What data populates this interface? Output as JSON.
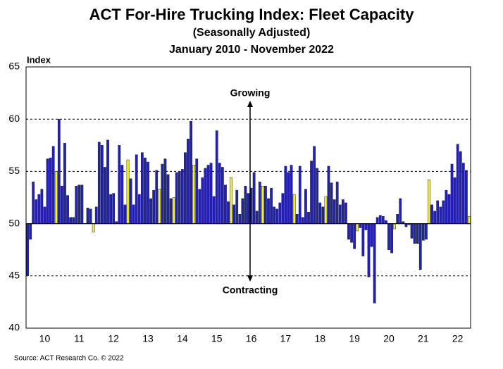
{
  "chart_data": {
    "type": "bar",
    "title": "ACT For-Hire Trucking Index: Fleet Capacity",
    "subtitle": "(Seasonally Adjusted)",
    "date_range": "January 2010 - November 2022",
    "y_label": "Index",
    "source": "Source: ACT Research Co. © 2022",
    "annotations": [
      "Growing",
      "Contracting"
    ],
    "categories": [
      null,
      null,
      null,
      null,
      null,
      null,
      "10",
      null,
      null,
      null,
      null,
      null,
      null,
      null,
      null,
      null,
      null,
      null,
      "11",
      null,
      null,
      null,
      null,
      null,
      null,
      null,
      null,
      null,
      null,
      null,
      "12",
      null,
      null,
      null,
      null,
      null,
      null,
      null,
      null,
      null,
      null,
      null,
      "13",
      null,
      null,
      null,
      null,
      null,
      null,
      null,
      null,
      null,
      null,
      null,
      "14",
      null,
      null,
      null,
      null,
      null,
      null,
      null,
      null,
      null,
      null,
      null,
      "15",
      null,
      null,
      null,
      null,
      null,
      null,
      null,
      null,
      null,
      null,
      null,
      "16",
      null,
      null,
      null,
      null,
      null,
      null,
      null,
      null,
      null,
      null,
      null,
      "17",
      null,
      null,
      null,
      null,
      null,
      null,
      null,
      null,
      null,
      null,
      null,
      "18",
      null,
      null,
      null,
      null,
      null,
      null,
      null,
      null,
      null,
      null,
      null,
      "19",
      null,
      null,
      null,
      null,
      null,
      null,
      null,
      null,
      null,
      null,
      null,
      "20",
      null,
      null,
      null,
      null,
      null,
      null,
      null,
      null,
      null,
      null,
      null,
      "21",
      null,
      null,
      null,
      null,
      null,
      null,
      null,
      null,
      null,
      null,
      null,
      "22",
      null,
      null,
      null,
      null
    ],
    "values": [
      45.0,
      48.5,
      54.0,
      52.3,
      52.8,
      53.3,
      51.6,
      56.2,
      56.3,
      57.4,
      55.0,
      60.0,
      53.6,
      57.7,
      52.7,
      50.6,
      50.6,
      53.6,
      53.7,
      53.7,
      50.0,
      51.5,
      51.4,
      49.2,
      51.6,
      57.8,
      57.5,
      55.4,
      58.0,
      52.8,
      52.9,
      50.2,
      57.5,
      55.6,
      51.8,
      56.1,
      54.3,
      51.8,
      56.6,
      52.8,
      56.8,
      56.3,
      55.9,
      52.4,
      53.2,
      55.1,
      53.3,
      55.7,
      56.2,
      54.7,
      52.4,
      52.5,
      54.9,
      55.0,
      55.2,
      56.8,
      58.1,
      59.8,
      55.6,
      56.2,
      53.3,
      54.4,
      55.3,
      55.6,
      55.8,
      52.6,
      58.9,
      55.8,
      55.4,
      53.7,
      52.1,
      54.4,
      51.8,
      53.2,
      50.9,
      52.4,
      53.6,
      52.9,
      53.4,
      54.9,
      51.2,
      54.0,
      53.6,
      53.6,
      52.4,
      53.4,
      51.6,
      51.4,
      52.0,
      52.9,
      55.5,
      54.9,
      55.6,
      52.8,
      50.9,
      55.5,
      50.6,
      53.3,
      51.1,
      56.0,
      57.4,
      55.3,
      52.0,
      51.6,
      52.6,
      55.5,
      53.9,
      52.3,
      54.0,
      51.8,
      52.3,
      52.0,
      48.5,
      48.2,
      47.6,
      49.3,
      49.6,
      46.9,
      49.4,
      44.9,
      47.8,
      42.4,
      50.6,
      50.8,
      50.7,
      50.3,
      47.5,
      47.2,
      49.5,
      50.9,
      52.4,
      50.2,
      49.7,
      49.9,
      48.6,
      48.1,
      48.1,
      45.6,
      48.4,
      48.5,
      54.2,
      51.8,
      51.2,
      52.2,
      51.6,
      52.2,
      53.2,
      52.8,
      55.7,
      54.4,
      57.6,
      56.9,
      55.8,
      55.1,
      50.7
    ],
    "colors": [
      "#2020c0",
      "#2020c0",
      "#2020c0",
      "#2020c0",
      "#2020c0",
      "#2020c0",
      "#2020c0",
      "#2020c0",
      "#2020c0",
      "#2020c0",
      "#f5f03a",
      "#2020c0",
      "#2020c0",
      "#2020c0",
      "#2020c0",
      "#2020c0",
      "#2020c0",
      "#2020c0",
      "#2020c0",
      "#2020c0",
      "#2020c0",
      "#2020c0",
      "#2020c0",
      "#f5f03a",
      "#2020c0",
      "#2020c0",
      "#2020c0",
      "#2020c0",
      "#2020c0",
      "#2020c0",
      "#2020c0",
      "#2020c0",
      "#2020c0",
      "#2020c0",
      "#2020c0",
      "#f5f03a",
      "#2020c0",
      "#2020c0",
      "#2020c0",
      "#2020c0",
      "#2020c0",
      "#2020c0",
      "#2020c0",
      "#2020c0",
      "#2020c0",
      "#2020c0",
      "#f5f03a",
      "#2020c0",
      "#2020c0",
      "#2020c0",
      "#2020c0",
      "#f5f03a",
      "#2020c0",
      "#2020c0",
      "#2020c0",
      "#2020c0",
      "#2020c0",
      "#2020c0",
      "#f5f03a",
      "#2020c0",
      "#2020c0",
      "#2020c0",
      "#2020c0",
      "#2020c0",
      "#2020c0",
      "#2020c0",
      "#2020c0",
      "#2020c0",
      "#2020c0",
      "#2020c0",
      "#2020c0",
      "#f5f03a",
      "#2020c0",
      "#2020c0",
      "#2020c0",
      "#2020c0",
      "#2020c0",
      "#2020c0",
      "#2020c0",
      "#2020c0",
      "#2020c0",
      "#2020c0",
      "#f5f03a",
      "#2020c0",
      "#2020c0",
      "#2020c0",
      "#2020c0",
      "#2020c0",
      "#2020c0",
      "#2020c0",
      "#2020c0",
      "#2020c0",
      "#2020c0",
      "#f5f03a",
      "#2020c0",
      "#2020c0",
      "#2020c0",
      "#2020c0",
      "#2020c0",
      "#2020c0",
      "#2020c0",
      "#2020c0",
      "#2020c0",
      "#2020c0",
      "#f5f03a",
      "#2020c0",
      "#2020c0",
      "#2020c0",
      "#2020c0",
      "#2020c0",
      "#2020c0",
      "#2020c0",
      "#2020c0",
      "#2020c0",
      "#2020c0",
      "#f5f03a",
      "#2020c0",
      "#2020c0",
      "#2020c0",
      "#2020c0",
      "#2020c0",
      "#2020c0",
      "#2020c0",
      "#2020c0",
      "#2020c0",
      "#2020c0",
      "#2020c0",
      "#2020c0",
      "#f5f03a",
      "#2020c0",
      "#2020c0",
      "#2020c0",
      "#2020c0",
      "#2020c0",
      "#2020c0",
      "#2020c0",
      "#2020c0",
      "#2020c0",
      "#2020c0",
      "#2020c0",
      "#f5f03a",
      "#2020c0",
      "#2020c0",
      "#2020c0",
      "#2020c0",
      "#2020c0",
      "#2020c0",
      "#2020c0",
      "#2020c0",
      "#2020c0",
      "#2020c0",
      "#2020c0",
      "#2020c0",
      "#2020c0",
      "#f5f03a"
    ],
    "baseline": 50,
    "ylim": [
      40,
      65
    ],
    "yticks": [
      40,
      45,
      50,
      55,
      60,
      65
    ],
    "grid": true
  }
}
